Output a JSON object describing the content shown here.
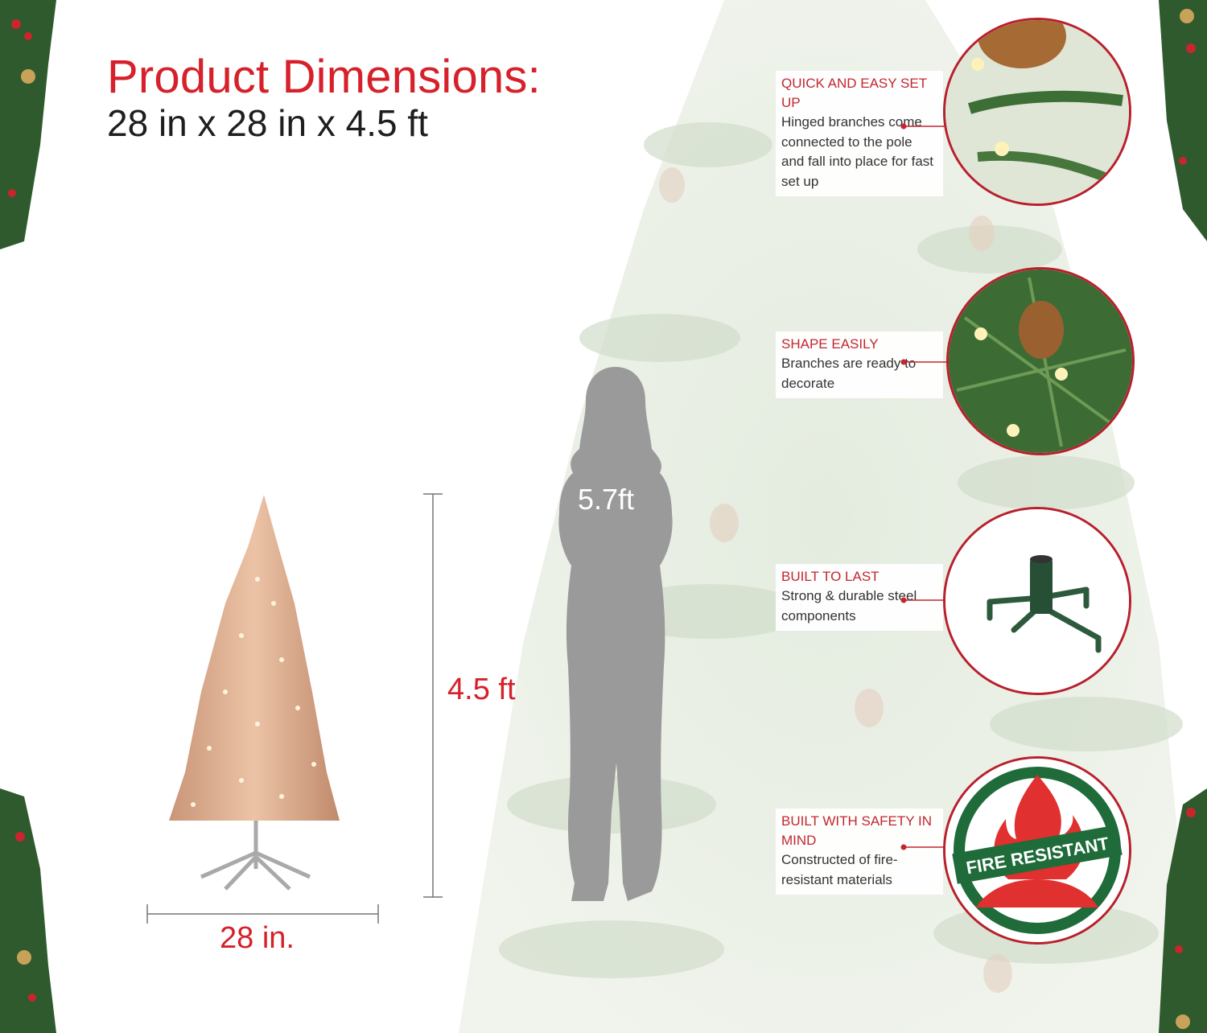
{
  "header": {
    "title": "Product Dimensions:",
    "dimensions": "28 in x 28 in x 4.5 ft"
  },
  "measurements": {
    "tree_height": "4.5 ft",
    "tree_width": "28 in.",
    "person_height": "5.7ft"
  },
  "features": [
    {
      "title": "QUICK AND EASY SET UP",
      "body": "Hinged branches come connected to the pole and fall into place for fast set up",
      "icon": "hinged-branch-icon"
    },
    {
      "title": "SHAPE EASILY",
      "body": "Branches are ready to decorate",
      "icon": "pinecone-branch-icon"
    },
    {
      "title": "BUILT TO LAST",
      "body": "Strong & durable steel components",
      "icon": "tree-stand-icon"
    },
    {
      "title": "BUILT WITH SAFETY IN MIND",
      "body": "Constructed of fire-resistant materials",
      "icon": "fire-resistant-badge-icon"
    }
  ],
  "badge": {
    "text": "FIRE RESISTANT"
  },
  "colors": {
    "accent_red": "#d6202a",
    "callout_red": "#c3262f",
    "silhouette_gray": "#9a9a9a",
    "tree_rose_gold": "#d8a88a",
    "badge_green": "#1f6b3a"
  }
}
